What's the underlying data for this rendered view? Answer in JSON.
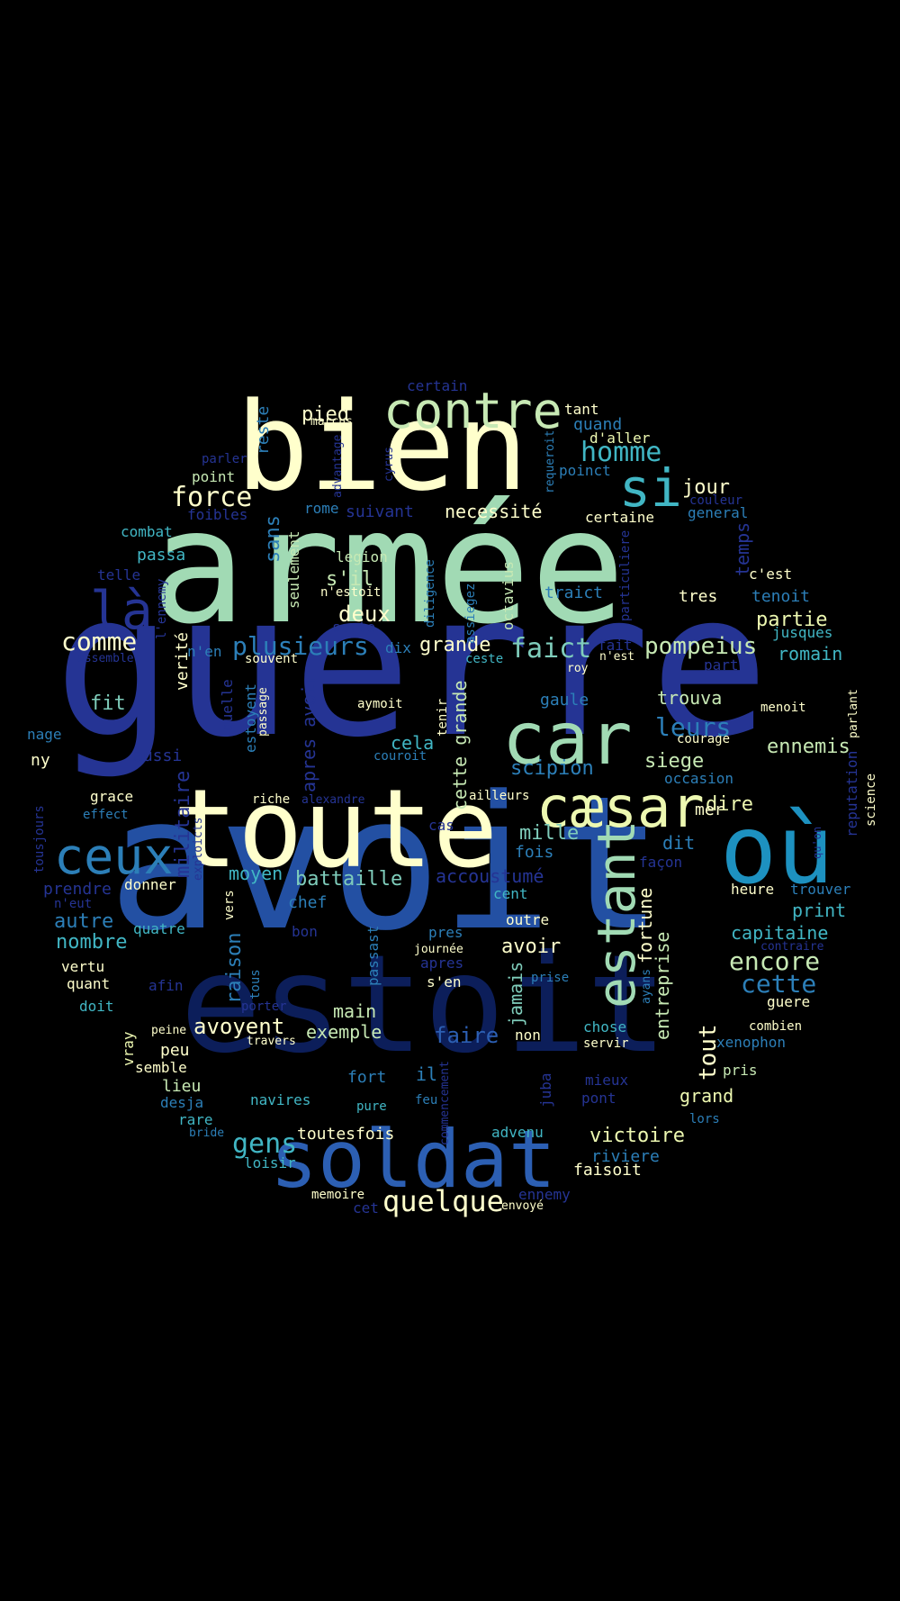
{
  "words": [
    {
      "text": "guerre",
      "color": "#253494"
    },
    {
      "text": "avoit",
      "color": "#2350a3"
    },
    {
      "text": "armée",
      "color": "#a1dab4"
    },
    {
      "text": "estoit",
      "color": "#0c1e5a"
    },
    {
      "text": "bien",
      "color": "#ffffcc"
    },
    {
      "text": "toute",
      "color": "#ffffcc"
    },
    {
      "text": "soldat",
      "color": "#2c5fb3"
    },
    {
      "text": "où",
      "color": "#1d91c0"
    },
    {
      "text": "car",
      "color": "#a1dab4"
    },
    {
      "text": "contre",
      "color": "#c7e9b4"
    },
    {
      "text": "cæsar",
      "color": "#edf8b1"
    },
    {
      "text": "ceux",
      "color": "#2c7fb8"
    },
    {
      "text": "là",
      "color": "#253494"
    },
    {
      "text": "estant",
      "color": "#a1dab4"
    },
    {
      "text": "si",
      "color": "#41b6c4"
    },
    {
      "text": "quelque",
      "color": "#ffffcc"
    },
    {
      "text": "plusieurs",
      "color": "#2c7fb8"
    },
    {
      "text": "faict",
      "color": "#7fcdbb"
    },
    {
      "text": "pompeius",
      "color": "#c7e9b4"
    },
    {
      "text": "homme",
      "color": "#41b6c4"
    },
    {
      "text": "force",
      "color": "#ffffcc"
    },
    {
      "text": "comme",
      "color": "#ffffcc"
    },
    {
      "text": "gens",
      "color": "#41b6c4"
    },
    {
      "text": "encore",
      "color": "#c7e9b4"
    },
    {
      "text": "cette",
      "color": "#2c7fb8"
    },
    {
      "text": "leurs",
      "color": "#2c7fb8"
    },
    {
      "text": "avoyent",
      "color": "#ffffcc"
    },
    {
      "text": "battaille",
      "color": "#7fcdbb"
    },
    {
      "text": "victoire",
      "color": "#edf8b1"
    },
    {
      "text": "grande",
      "color": "#ffffcc"
    },
    {
      "text": "scipion",
      "color": "#2c7fb8"
    },
    {
      "text": "siege",
      "color": "#c7e9b4"
    },
    {
      "text": "ennemis",
      "color": "#c7e9b4"
    },
    {
      "text": "fortune",
      "color": "#ffffcc"
    },
    {
      "text": "pied",
      "color": "#ffffcc"
    },
    {
      "text": "deux",
      "color": "#ffffcc"
    },
    {
      "text": "s'il",
      "color": "#c7e9b4"
    },
    {
      "text": "mille",
      "color": "#7fcdbb"
    },
    {
      "text": "tout",
      "color": "#ffffcc"
    },
    {
      "text": "dire",
      "color": "#edf8b1"
    },
    {
      "text": "partie",
      "color": "#edf8b1"
    },
    {
      "text": "entreprise",
      "color": "#c7e9b4"
    },
    {
      "text": "militaire",
      "color": "#253494"
    },
    {
      "text": "sans",
      "color": "#2c7fb8"
    },
    {
      "text": "raison",
      "color": "#2c7fb8"
    },
    {
      "text": "faire",
      "color": "#2c5fb3"
    },
    {
      "text": "capitaine",
      "color": "#41b6c4"
    },
    {
      "text": "jour",
      "color": "#ffffcc"
    },
    {
      "text": "necessité",
      "color": "#ffffcc"
    },
    {
      "text": "cela",
      "color": "#41b6c4"
    },
    {
      "text": "romain",
      "color": "#41b6c4"
    },
    {
      "text": "temps",
      "color": "#253494"
    },
    {
      "text": "exemple",
      "color": "#c7e9b4"
    },
    {
      "text": "main",
      "color": "#c7e9b4"
    },
    {
      "text": "avoir",
      "color": "#ffffcc"
    },
    {
      "text": "jamais",
      "color": "#7fcdbb"
    },
    {
      "text": "grand",
      "color": "#edf8b1"
    },
    {
      "text": "autre",
      "color": "#2c7fb8"
    },
    {
      "text": "nombre",
      "color": "#41b6c4"
    },
    {
      "text": "moyen",
      "color": "#41b6c4"
    },
    {
      "text": "accoustumé",
      "color": "#253494"
    },
    {
      "text": "fit",
      "color": "#7fcdbb"
    },
    {
      "text": "trouva",
      "color": "#c7e9b4"
    },
    {
      "text": "gaule",
      "color": "#2c7fb8"
    },
    {
      "text": "apres avoir",
      "color": "#253494"
    },
    {
      "text": "cette grande",
      "color": "#c7e9b4"
    },
    {
      "text": "reste",
      "color": "#2c7fb8"
    },
    {
      "text": "print",
      "color": "#41b6c4"
    },
    {
      "text": "quand",
      "color": "#2c7fb8"
    },
    {
      "text": "tant",
      "color": "#ffffcc"
    },
    {
      "text": "d'aller",
      "color": "#edf8b1"
    },
    {
      "text": "poinct",
      "color": "#2c7fb8"
    },
    {
      "text": "certaine",
      "color": "#ffffcc"
    },
    {
      "text": "general",
      "color": "#2c7fb8"
    },
    {
      "text": "couleur",
      "color": "#253494"
    },
    {
      "text": "c'est",
      "color": "#ffffcc"
    },
    {
      "text": "tenoit",
      "color": "#2c7fb8"
    },
    {
      "text": "tres",
      "color": "#ffffcc"
    },
    {
      "text": "traict",
      "color": "#2c7fb8"
    },
    {
      "text": "jusques",
      "color": "#41b6c4"
    },
    {
      "text": "part",
      "color": "#253494"
    },
    {
      "text": "fait",
      "color": "#253494"
    },
    {
      "text": "n'est",
      "color": "#ffffcc"
    },
    {
      "text": "roy",
      "color": "#ffffcc"
    },
    {
      "text": "ceste",
      "color": "#41b6c4"
    },
    {
      "text": "menoit",
      "color": "#ffffcc"
    },
    {
      "text": "parlant",
      "color": "#ffffcc"
    },
    {
      "text": "courage",
      "color": "#ffffcc"
    },
    {
      "text": "occasion",
      "color": "#2c7fb8"
    },
    {
      "text": "mer",
      "color": "#ffffcc"
    },
    {
      "text": "reputation",
      "color": "#253494"
    },
    {
      "text": "science",
      "color": "#ffffcc"
    },
    {
      "text": "qu'on",
      "color": "#253494"
    },
    {
      "text": "trouver",
      "color": "#2c7fb8"
    },
    {
      "text": "heure",
      "color": "#ffffcc"
    },
    {
      "text": "contraire",
      "color": "#253494"
    },
    {
      "text": "guere",
      "color": "#ffffcc"
    },
    {
      "text": "combien",
      "color": "#ffffcc"
    },
    {
      "text": "xenophon",
      "color": "#2c7fb8"
    },
    {
      "text": "pris",
      "color": "#c7e9b4"
    },
    {
      "text": "lors",
      "color": "#2c7fb8"
    },
    {
      "text": "riviere",
      "color": "#2c7fb8"
    },
    {
      "text": "faisoit",
      "color": "#ffffcc"
    },
    {
      "text": "envoyé",
      "color": "#ffffcc"
    },
    {
      "text": "ennemy",
      "color": "#253494"
    },
    {
      "text": "advenu",
      "color": "#41b6c4"
    },
    {
      "text": "pont",
      "color": "#253494"
    },
    {
      "text": "mieux",
      "color": "#253494"
    },
    {
      "text": "servir",
      "color": "#ffffcc"
    },
    {
      "text": "chose",
      "color": "#41b6c4"
    },
    {
      "text": "non",
      "color": "#ffffcc"
    },
    {
      "text": "juba",
      "color": "#253494"
    },
    {
      "text": "prise",
      "color": "#2c7fb8"
    },
    {
      "text": "ayans",
      "color": "#2c7fb8"
    },
    {
      "text": "façon",
      "color": "#253494"
    },
    {
      "text": "fois",
      "color": "#2c7fb8"
    },
    {
      "text": "dit",
      "color": "#2c7fb8"
    },
    {
      "text": "cent",
      "color": "#41b6c4"
    },
    {
      "text": "outre",
      "color": "#ffffcc"
    },
    {
      "text": "ailleurs",
      "color": "#ffffcc"
    },
    {
      "text": "cas",
      "color": "#253494"
    },
    {
      "text": "pres",
      "color": "#2c7fb8"
    },
    {
      "text": "journée",
      "color": "#ffffcc"
    },
    {
      "text": "apres",
      "color": "#253494"
    },
    {
      "text": "s'en",
      "color": "#ffffcc"
    },
    {
      "text": "commencement",
      "color": "#253494"
    },
    {
      "text": "feu",
      "color": "#2c7fb8"
    },
    {
      "text": "il",
      "color": "#2c7fb8"
    },
    {
      "text": "pure",
      "color": "#41b6c4"
    },
    {
      "text": "fort",
      "color": "#2c7fb8"
    },
    {
      "text": "passast",
      "color": "#2c7fb8"
    },
    {
      "text": "toutesfois",
      "color": "#ffffcc"
    },
    {
      "text": "memoire",
      "color": "#ffffcc"
    },
    {
      "text": "cet",
      "color": "#253494"
    },
    {
      "text": "loisir",
      "color": "#41b6c4"
    },
    {
      "text": "navires",
      "color": "#41b6c4"
    },
    {
      "text": "porter",
      "color": "#253494"
    },
    {
      "text": "travers",
      "color": "#ffffcc"
    },
    {
      "text": "bon",
      "color": "#253494"
    },
    {
      "text": "tous",
      "color": "#2c7fb8"
    },
    {
      "text": "chef",
      "color": "#2c7fb8"
    },
    {
      "text": "vers",
      "color": "#ffffcc"
    },
    {
      "text": "afin",
      "color": "#253494"
    },
    {
      "text": "quatre",
      "color": "#41b6c4"
    },
    {
      "text": "donner",
      "color": "#ffffcc"
    },
    {
      "text": "exploicts",
      "color": "#253494"
    },
    {
      "text": "riche",
      "color": "#ffffcc"
    },
    {
      "text": "alexandre",
      "color": "#253494"
    },
    {
      "text": "couroit",
      "color": "#2c7fb8"
    },
    {
      "text": "aymoit",
      "color": "#ffffcc"
    },
    {
      "text": "tenir",
      "color": "#ffffcc"
    },
    {
      "text": "estoyent",
      "color": "#2c7fb8"
    },
    {
      "text": "quelle",
      "color": "#253494"
    },
    {
      "text": "passage",
      "color": "#ffffcc"
    },
    {
      "text": "souvent",
      "color": "#ffffcc"
    },
    {
      "text": "verité",
      "color": "#ffffcc"
    },
    {
      "text": "n'en",
      "color": "#2c7fb8"
    },
    {
      "text": "dix",
      "color": "#2c7fb8"
    },
    {
      "text": "sorte",
      "color": "#253494"
    },
    {
      "text": "n'estoit",
      "color": "#ffffcc"
    },
    {
      "text": "legion",
      "color": "#c7e9b4"
    },
    {
      "text": "seulement",
      "color": "#c7e9b4"
    },
    {
      "text": "diligence",
      "color": "#2c7fb8"
    },
    {
      "text": "assiegez",
      "color": "#2c7fb8"
    },
    {
      "text": "octavius",
      "color": "#c7e9b4"
    },
    {
      "text": "particuliere",
      "color": "#253494"
    },
    {
      "text": "suivant",
      "color": "#253494"
    },
    {
      "text": "rome",
      "color": "#2c7fb8"
    },
    {
      "text": "advantage",
      "color": "#253494"
    },
    {
      "text": "cyrus",
      "color": "#253494"
    },
    {
      "text": "requeroit",
      "color": "#2c7fb8"
    },
    {
      "text": "marcus",
      "color": "#ffffcc"
    },
    {
      "text": "certain",
      "color": "#253494"
    },
    {
      "text": "parler",
      "color": "#253494"
    },
    {
      "text": "point",
      "color": "#c7e9b4"
    },
    {
      "text": "foibles",
      "color": "#253494"
    },
    {
      "text": "combat",
      "color": "#41b6c4"
    },
    {
      "text": "passa",
      "color": "#41b6c4"
    },
    {
      "text": "telle",
      "color": "#253494"
    },
    {
      "text": "l'ennemy",
      "color": "#253494"
    },
    {
      "text": "assembler",
      "color": "#253494"
    },
    {
      "text": "nage",
      "color": "#2c7fb8"
    },
    {
      "text": "ny",
      "color": "#ffffcc"
    },
    {
      "text": "aussi",
      "color": "#253494"
    },
    {
      "text": "grace",
      "color": "#ffffcc"
    },
    {
      "text": "effect",
      "color": "#2c7fb8"
    },
    {
      "text": "tousjours",
      "color": "#253494"
    },
    {
      "text": "prendre",
      "color": "#253494"
    },
    {
      "text": "n'eut",
      "color": "#253494"
    },
    {
      "text": "vertu",
      "color": "#ffffcc"
    },
    {
      "text": "quant",
      "color": "#ffffcc"
    },
    {
      "text": "doit",
      "color": "#41b6c4"
    },
    {
      "text": "peine",
      "color": "#ffffcc"
    },
    {
      "text": "vray",
      "color": "#edf8b1"
    },
    {
      "text": "peu",
      "color": "#ffffcc"
    },
    {
      "text": "semble",
      "color": "#ffffcc"
    },
    {
      "text": "lieu",
      "color": "#c7e9b4"
    },
    {
      "text": "desja",
      "color": "#2c7fb8"
    },
    {
      "text": "rare",
      "color": "#41b6c4"
    },
    {
      "text": "bride",
      "color": "#2c7fb8"
    }
  ]
}
